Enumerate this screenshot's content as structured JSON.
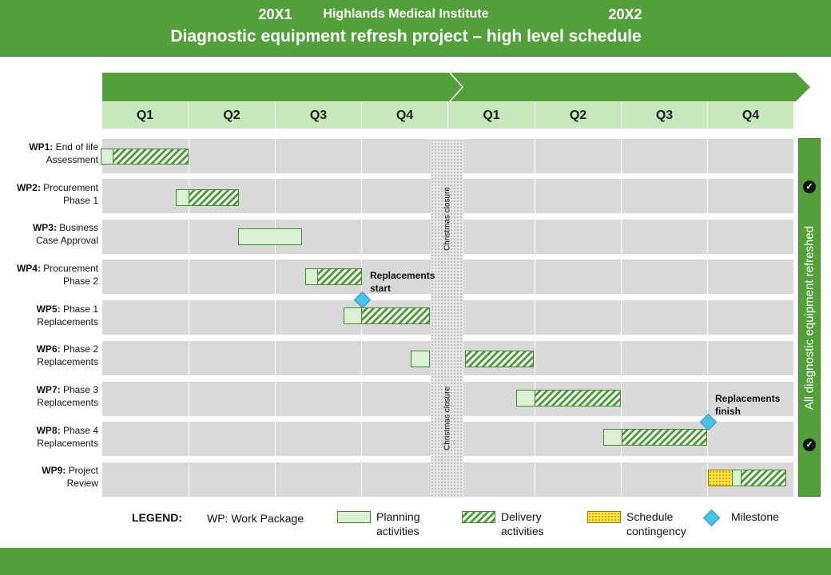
{
  "header": {
    "organization": "Highlands Medical Institute",
    "title": "Diagnostic equipment refresh project – high level schedule"
  },
  "timeline": {
    "years": [
      "20X1",
      "20X2"
    ],
    "quarters": [
      "Q1",
      "Q2",
      "Q3",
      "Q4",
      "Q1",
      "Q2",
      "Q3",
      "Q4"
    ]
  },
  "work_packages": [
    {
      "id": "WP1:",
      "line1": "End of life",
      "line2": "Assessment"
    },
    {
      "id": "WP2:",
      "line1": "Procurement",
      "line2": "Phase 1"
    },
    {
      "id": "WP3:",
      "line1": "Business",
      "line2": "Case Approval"
    },
    {
      "id": "WP4:",
      "line1": "Procurement",
      "line2": "Phase 2"
    },
    {
      "id": "WP5:",
      "line1": "Phase 1",
      "line2": "Replacements"
    },
    {
      "id": "WP6:",
      "line1": "Phase 2",
      "line2": "Replacements"
    },
    {
      "id": "WP7:",
      "line1": "Phase 3",
      "line2": "Replacements"
    },
    {
      "id": "WP8:",
      "line1": "Phase 4",
      "line2": "Replacements"
    },
    {
      "id": "WP9:",
      "line1": "Project",
      "line2": "Review"
    }
  ],
  "closure_label": "Christmas closure",
  "milestones": {
    "start": {
      "line1": "Replacements",
      "line2": "start"
    },
    "finish": {
      "line1": "Replacements",
      "line2": "finish"
    }
  },
  "side_banner": "All diagnostic equipment refreshed",
  "legend": {
    "title": "LEGEND:",
    "wp": "WP: Work Package",
    "planning": {
      "line1": "Planning",
      "line2": "activities"
    },
    "delivery": {
      "line1": "Delivery",
      "line2": "activities"
    },
    "contingency": {
      "line1": "Schedule",
      "line2": "contingency"
    },
    "milestone": "Milestone"
  },
  "colors": {
    "brand_green": "#53a03b",
    "quarter_fill": "#c6e9bb",
    "planning_fill": "#dbf0d5",
    "milestone": "#48c3ea",
    "contingency": "#ffe14a"
  }
}
